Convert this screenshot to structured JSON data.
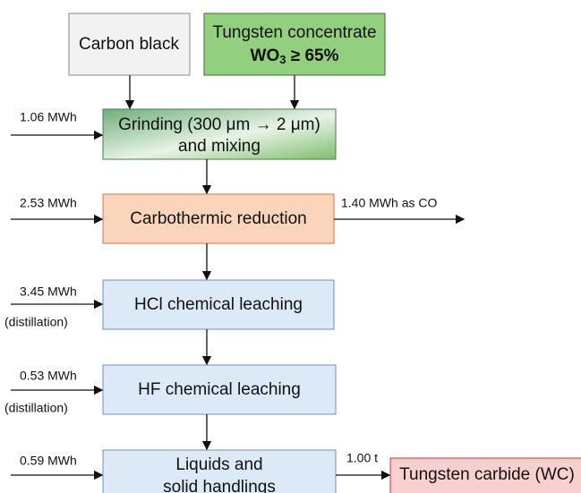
{
  "nodes": [
    {
      "label": "Carbon black"
    },
    {
      "label": "Tungsten concentrate",
      "formula": "WO",
      "subscript": "3",
      "condition": " ≥ 65%"
    },
    {
      "label": "Grinding (300 μm → 2 μm)",
      "label2": "and mixing"
    },
    {
      "label": "Carbothermic reduction"
    },
    {
      "label": "HCl chemical leaching"
    },
    {
      "label": "HF chemical leaching"
    },
    {
      "label": "Liquids and",
      "label2": "solid handlings"
    },
    {
      "label": "Tungsten carbide (WC)"
    }
  ],
  "inputs": [
    {
      "label": "1.06 MWh"
    },
    {
      "label": "2.53 MWh"
    },
    {
      "label": "3.45 MWh",
      "note": "(distillation)"
    },
    {
      "label": "0.53 MWh",
      "note": "(distillation)"
    },
    {
      "label": "0.59 MWh"
    }
  ],
  "outputs": [
    {
      "label": "1.40 MWh as CO"
    },
    {
      "label": "1.00 t"
    }
  ]
}
